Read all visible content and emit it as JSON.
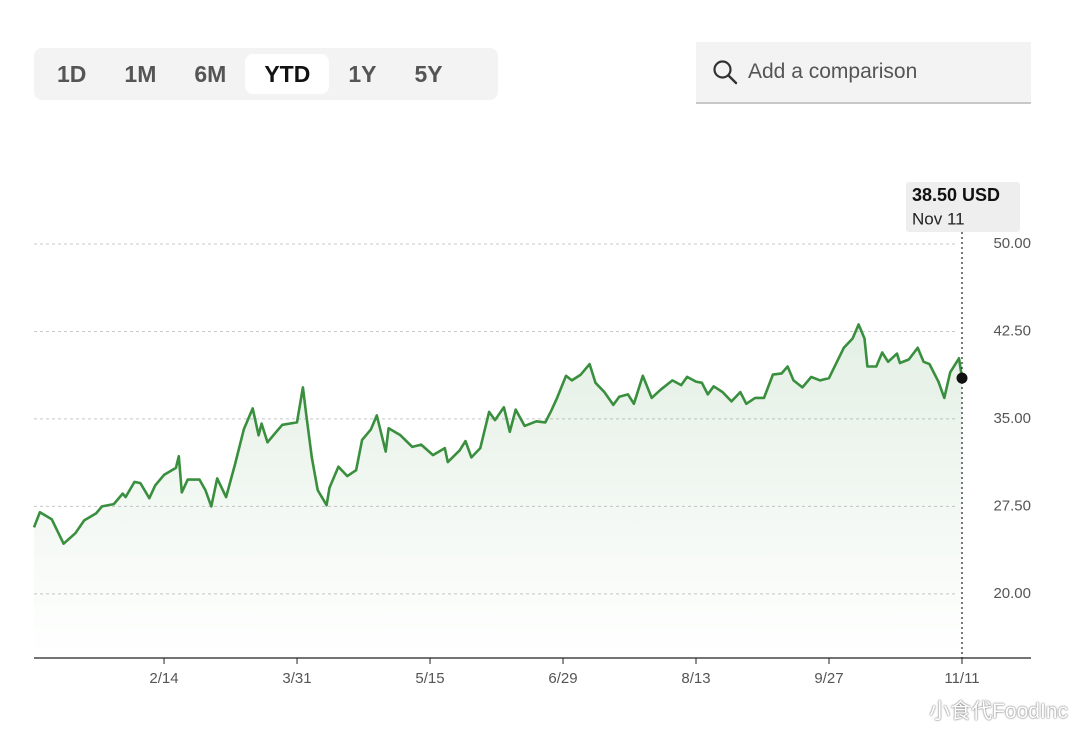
{
  "ui": {
    "tabs": [
      "1D",
      "1M",
      "6M",
      "YTD",
      "1Y",
      "5Y"
    ],
    "active_tab": 3,
    "search_placeholder": "Add a comparison"
  },
  "watermark": "小食代FoodInc",
  "chart_data": {
    "type": "area",
    "color": "#3a8f3f",
    "x": [
      "1/1",
      "1/3",
      "1/7",
      "1/11",
      "1/15",
      "1/18",
      "1/22",
      "1/24",
      "1/28",
      "1/31",
      "2/1",
      "2/4",
      "2/6",
      "2/9",
      "2/11",
      "2/14",
      "2/18",
      "2/19",
      "2/20",
      "2/22",
      "2/26",
      "2/28",
      "3/2",
      "3/4",
      "3/7",
      "3/10",
      "3/13",
      "3/16",
      "3/18",
      "3/19",
      "3/21",
      "3/24",
      "3/26",
      "3/31",
      "4/2",
      "4/3",
      "4/5",
      "4/7",
      "4/10",
      "4/11",
      "4/14",
      "4/17",
      "4/20",
      "4/22",
      "4/25",
      "4/27",
      "4/30",
      "5/1",
      "5/5",
      "5/9",
      "5/12",
      "5/16",
      "5/20",
      "5/21",
      "5/25",
      "5/27",
      "5/29",
      "6/1",
      "6/4",
      "6/6",
      "6/9",
      "6/11",
      "6/13",
      "6/16",
      "6/20",
      "6/23",
      "6/25",
      "6/27",
      "6/30",
      "7/2",
      "7/5",
      "7/8",
      "7/10",
      "7/13",
      "7/16",
      "7/18",
      "7/21",
      "7/23",
      "7/26",
      "7/29",
      "8/1",
      "8/5",
      "8/8",
      "8/10",
      "8/13",
      "8/15",
      "8/17",
      "8/19",
      "8/22",
      "8/25",
      "8/28",
      "8/30",
      "9/2",
      "9/5",
      "9/8",
      "9/11",
      "9/13",
      "9/15",
      "9/18",
      "9/21",
      "9/24",
      "9/27",
      "10/2",
      "10/5",
      "10/7",
      "10/9",
      "10/10",
      "10/13",
      "10/15",
      "10/17",
      "10/20",
      "10/21",
      "10/24",
      "10/27",
      "10/29",
      "10/31",
      "11/3",
      "11/5",
      "11/7",
      "11/10",
      "11/11"
    ],
    "values": [
      25.7,
      27.0,
      26.4,
      24.3,
      25.2,
      26.3,
      26.9,
      27.5,
      27.7,
      28.6,
      28.3,
      29.6,
      29.5,
      28.2,
      29.3,
      30.2,
      30.8,
      31.8,
      28.7,
      29.8,
      29.8,
      28.9,
      27.5,
      29.9,
      28.3,
      31.1,
      34.1,
      35.9,
      33.6,
      34.6,
      33.0,
      33.9,
      34.5,
      34.7,
      37.7,
      35.6,
      31.7,
      28.9,
      27.6,
      29.1,
      30.9,
      30.1,
      30.6,
      33.2,
      34.1,
      35.3,
      32.2,
      34.2,
      33.6,
      32.6,
      32.8,
      31.9,
      32.5,
      31.3,
      32.3,
      33.1,
      31.7,
      32.5,
      35.6,
      34.9,
      36.0,
      33.9,
      35.8,
      34.4,
      34.8,
      34.7,
      35.7,
      36.8,
      38.7,
      38.3,
      38.8,
      39.7,
      38.1,
      37.3,
      36.2,
      36.9,
      37.1,
      36.3,
      38.7,
      36.8,
      37.5,
      38.3,
      37.9,
      38.6,
      38.2,
      38.1,
      37.1,
      37.8,
      37.3,
      36.5,
      37.3,
      36.3,
      36.8,
      36.8,
      38.8,
      38.9,
      39.5,
      38.3,
      37.7,
      38.6,
      38.3,
      38.5,
      41.1,
      41.9,
      43.1,
      41.9,
      39.5,
      39.5,
      40.7,
      39.9,
      40.6,
      39.8,
      40.1,
      41.1,
      39.9,
      39.7,
      38.2,
      36.8,
      39.0,
      40.2,
      38.5
    ],
    "xlim": [
      "1/1",
      "11/11"
    ],
    "xticks": [
      "2/14",
      "3/31",
      "5/15",
      "6/29",
      "8/13",
      "9/27",
      "11/11"
    ],
    "ylim": [
      14.5,
      50
    ],
    "yticks": [
      {
        "value": 20,
        "label": "20.00"
      },
      {
        "value": 27.5,
        "label": "27.50"
      },
      {
        "value": 35,
        "label": "35.00"
      },
      {
        "value": 42.5,
        "label": "42.50"
      },
      {
        "value": 50,
        "label": "50.00"
      }
    ],
    "grid": true,
    "tooltip": {
      "value_label": "38.50 USD",
      "date_label": "Nov 11"
    }
  }
}
